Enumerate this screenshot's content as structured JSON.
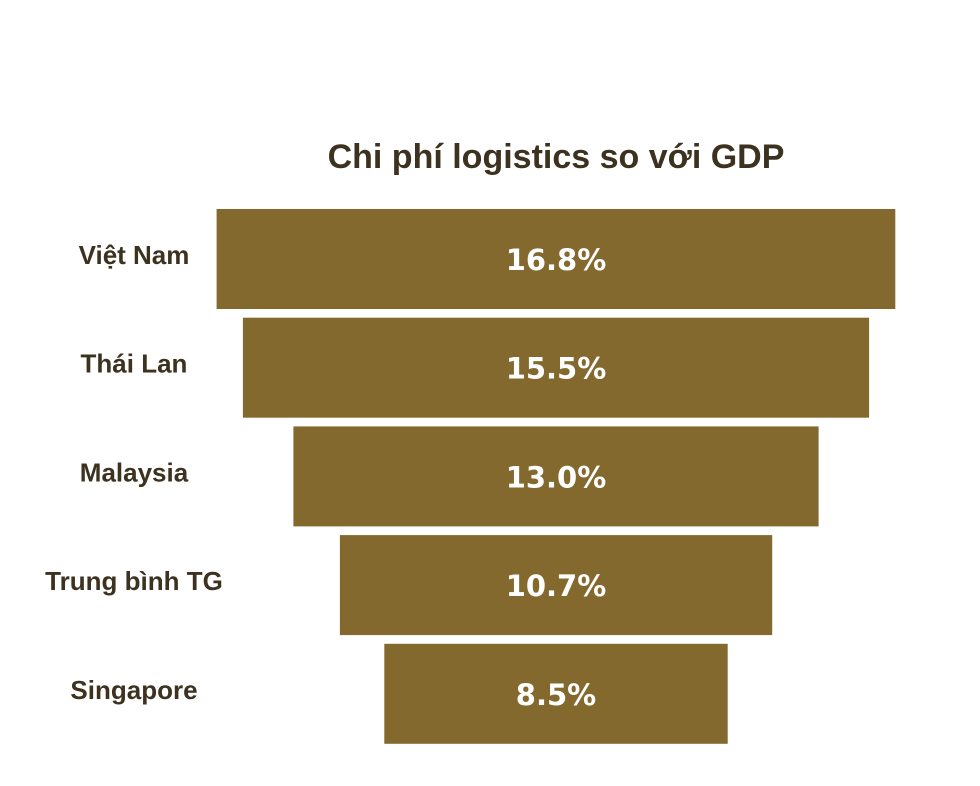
{
  "chart_data": {
    "type": "bar",
    "orientation": "horizontal",
    "layout": "funnel",
    "title": "Chi phí logistics so với GDP",
    "categories": [
      "Việt Nam",
      "Thái Lan",
      "Malaysia",
      "Trung bình TG",
      "Singapore"
    ],
    "values": [
      16.8,
      15.5,
      13.0,
      10.7,
      8.5
    ],
    "value_labels": [
      "16.8%",
      "15.5%",
      "13.0%",
      "10.7%",
      "8.5%"
    ],
    "unit": "%",
    "xlabel": "",
    "ylabel": "",
    "grid": false,
    "legend": "none",
    "bar_color": "#84692f",
    "label_color": "#3d3220",
    "value_label_color": "#ffffff"
  }
}
